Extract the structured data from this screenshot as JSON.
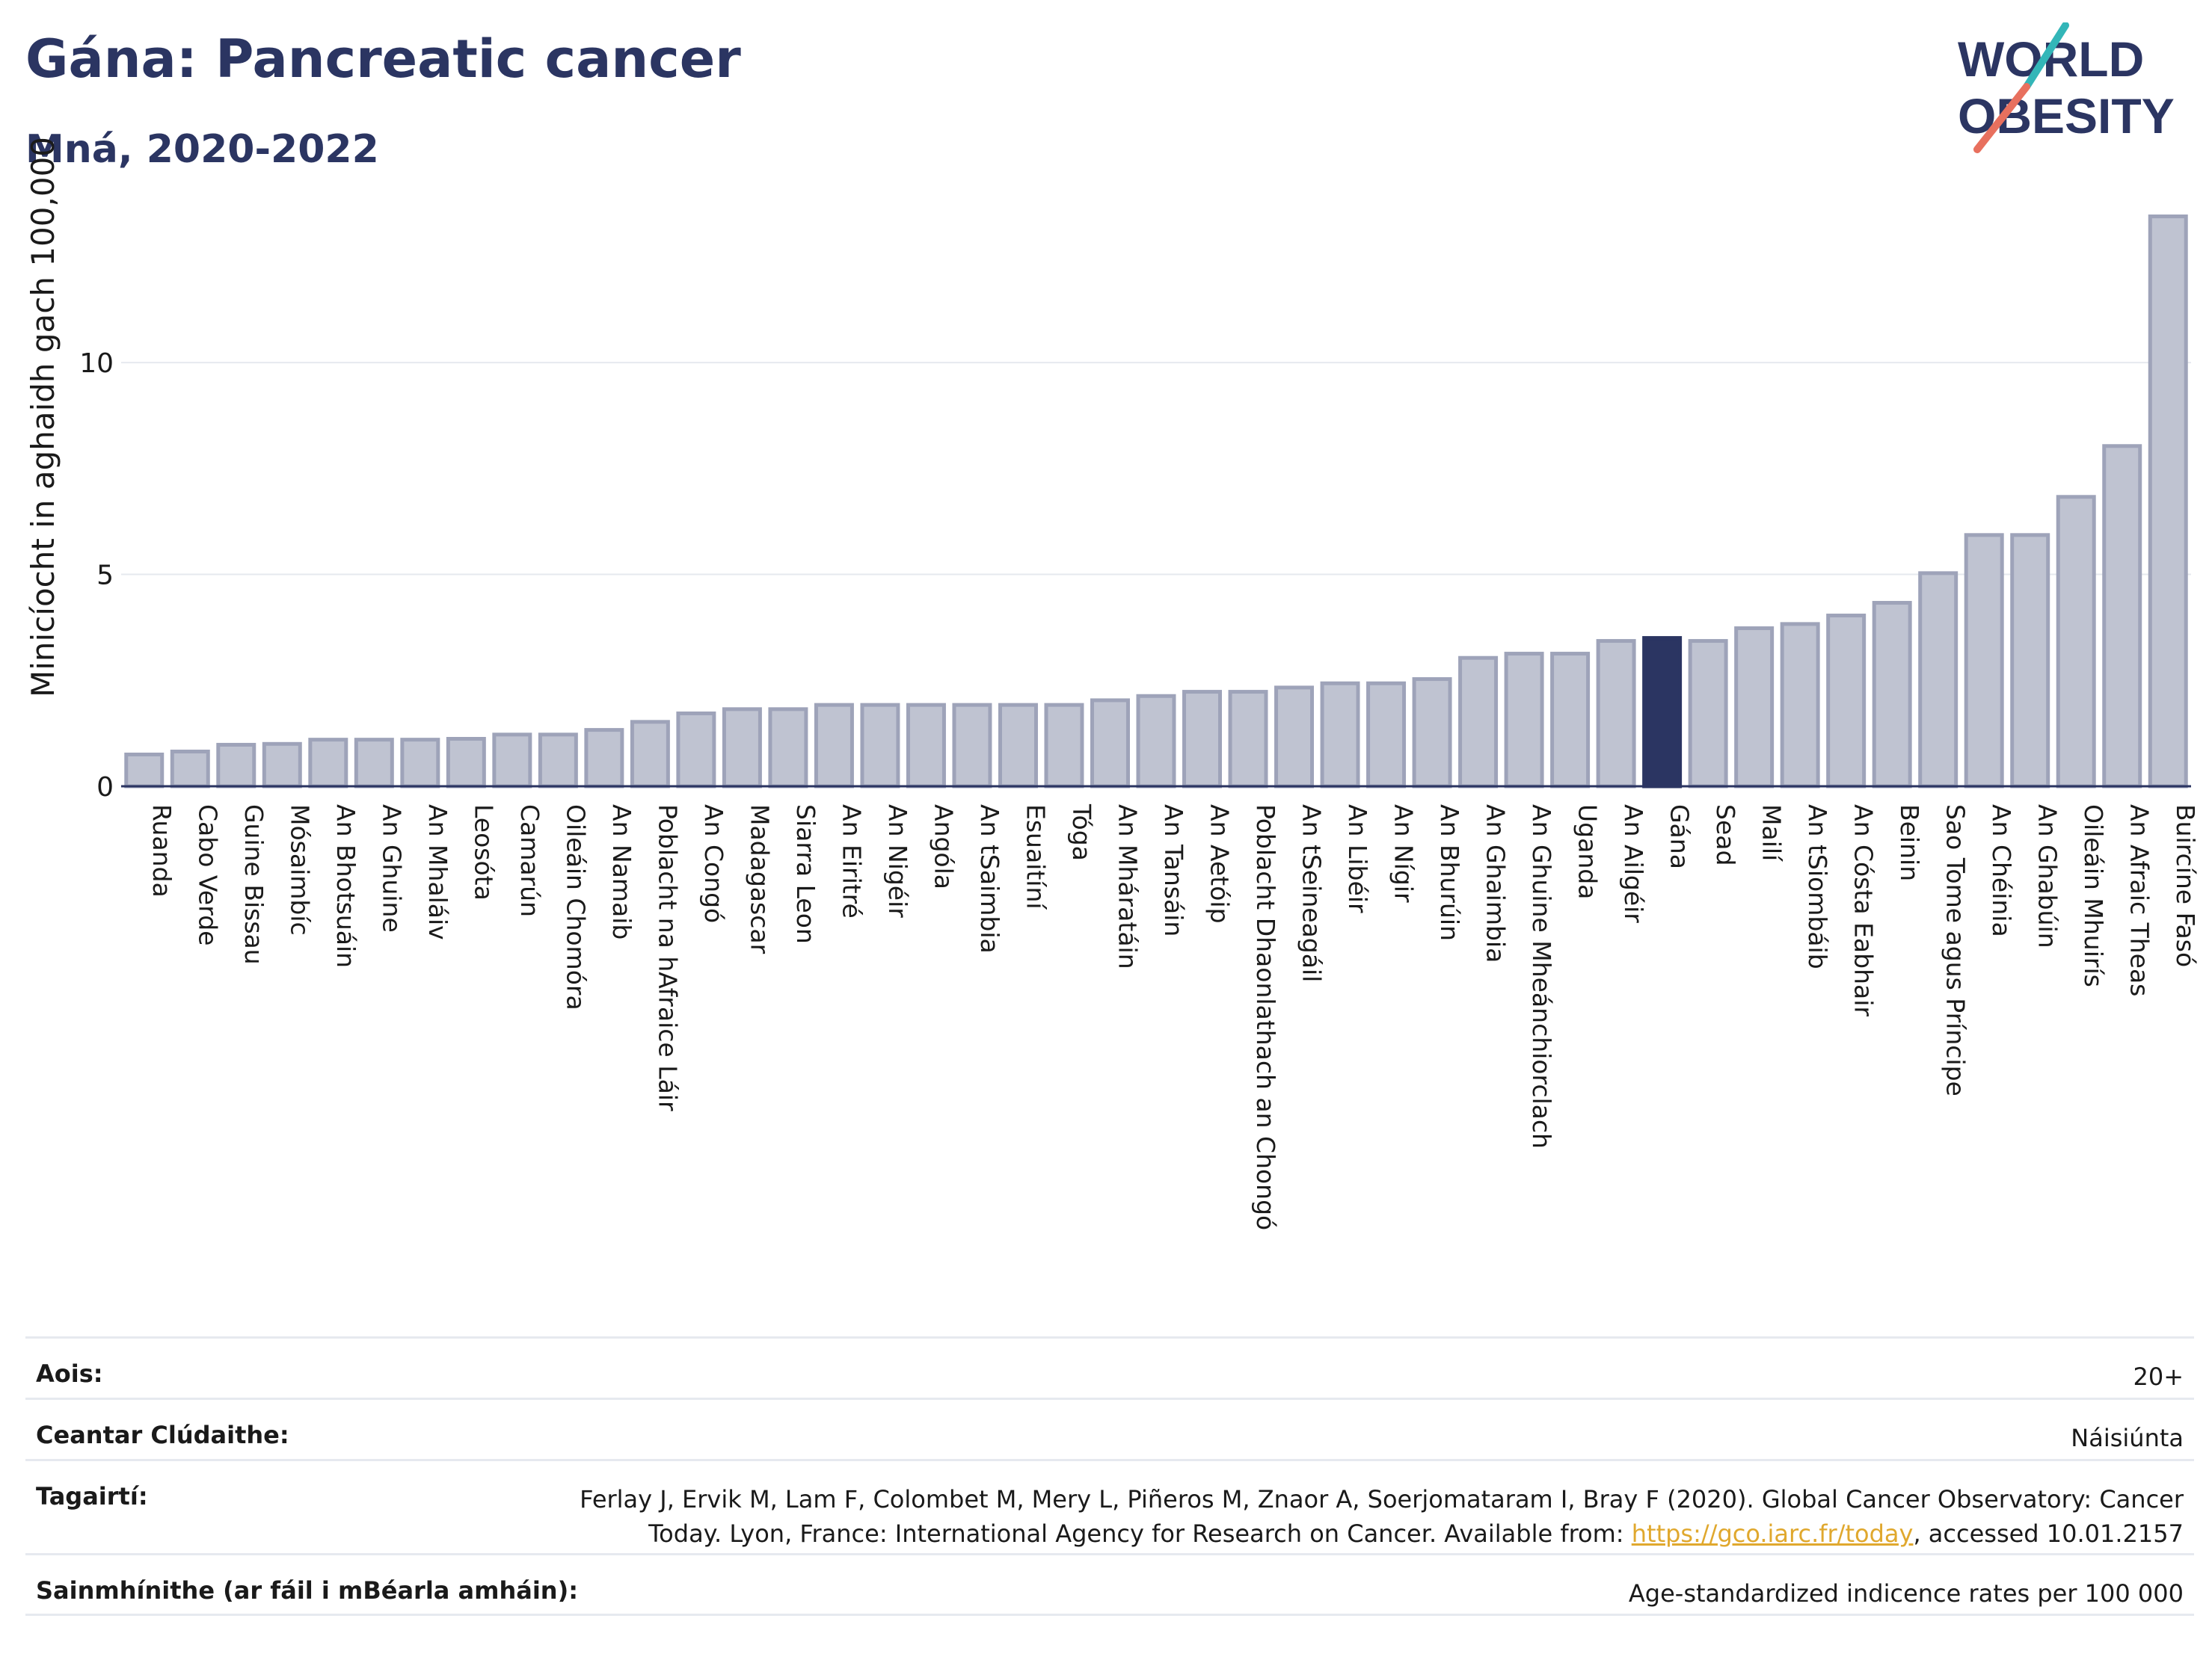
{
  "header": {
    "title": "Gána: Pancreatic cancer",
    "subtitle": "Mná, 2020-2022"
  },
  "logo": {
    "line1": "WORLD",
    "line2": "OBESITY",
    "icon": "world-obesity-logo"
  },
  "colors": {
    "bar": "#bfc3d1",
    "bar_border": "#9ea3b9",
    "highlight": "#2b3562",
    "text": "#2b3562",
    "grid": "#e6e9ef"
  },
  "chart_data": {
    "type": "bar",
    "ylabel": "Minicíocht in aghaidh gach 100,000",
    "yticks": [
      0,
      5,
      10
    ],
    "ylim": [
      0,
      13.9
    ],
    "highlight": "Gána",
    "categories": [
      "Ruanda",
      "Cabo Verde",
      "Guine Bissau",
      "Mósaimbíc",
      "An Bhotsuáin",
      "An Ghuine",
      "An Mhaláiv",
      "Leosóta",
      "Camarún",
      "Oileáin Chomóra",
      "An Namaib",
      "Poblacht na hAfraice Láir",
      "An Congó",
      "Madagascar",
      "Siarra Leon",
      "An Eiritré",
      "An Nigéir",
      "Angóla",
      "An tSaimbia",
      "Esuaitíní",
      "Tóga",
      "An Mháratáin",
      "An Tansáin",
      "An Aetóip",
      "Poblacht Dhaonlathach an Chongó",
      "An tSeineagáil",
      "An Libéir",
      "An Nígir",
      "An Bhurúin",
      "An Ghaimbia",
      "An Ghuine Mheánchiorclach",
      "Uganda",
      "An Ailgéir",
      "Gána",
      "Sead",
      "Mailí",
      "An tSiombáib",
      "An Cósta Eabhair",
      "Beinin",
      "Sao Tome agus Príncipe",
      "An Chéinia",
      "An Ghabúin",
      "Oileáin Mhuirís",
      "An Afraic Theas",
      "Buircíne Fasó"
    ],
    "values": [
      0.75,
      0.82,
      0.98,
      1.0,
      1.1,
      1.1,
      1.1,
      1.12,
      1.22,
      1.22,
      1.33,
      1.52,
      1.72,
      1.82,
      1.82,
      1.92,
      1.92,
      1.92,
      1.92,
      1.92,
      1.92,
      2.03,
      2.13,
      2.23,
      2.23,
      2.33,
      2.43,
      2.43,
      2.53,
      3.03,
      3.13,
      3.13,
      3.43,
      3.5,
      3.43,
      3.73,
      3.83,
      4.03,
      4.33,
      5.03,
      5.93,
      5.93,
      6.83,
      8.03,
      13.45
    ]
  },
  "info": {
    "age_label": "Aois:",
    "age_value": "20+",
    "area_label": "Ceantar Clúdaithe:",
    "area_value": "Náisiúnta",
    "refs_label": "Tagairtí:",
    "refs_text": "Ferlay J, Ervik M, Lam F, Colombet M, Mery L, Piñeros M, Znaor A, Soerjomataram I, Bray F (2020). Global Cancer Observatory: Cancer Today. Lyon, France: International Agency for Research on Cancer. Available from:",
    "refs_link": "https://gco.iarc.fr/today",
    "refs_suffix": ", accessed 10.01.2157",
    "defs_label": "Sainmhínithe (ar fáil i mBéarla amháin):",
    "defs_value": "Age-standardized indicence rates per 100 000"
  }
}
